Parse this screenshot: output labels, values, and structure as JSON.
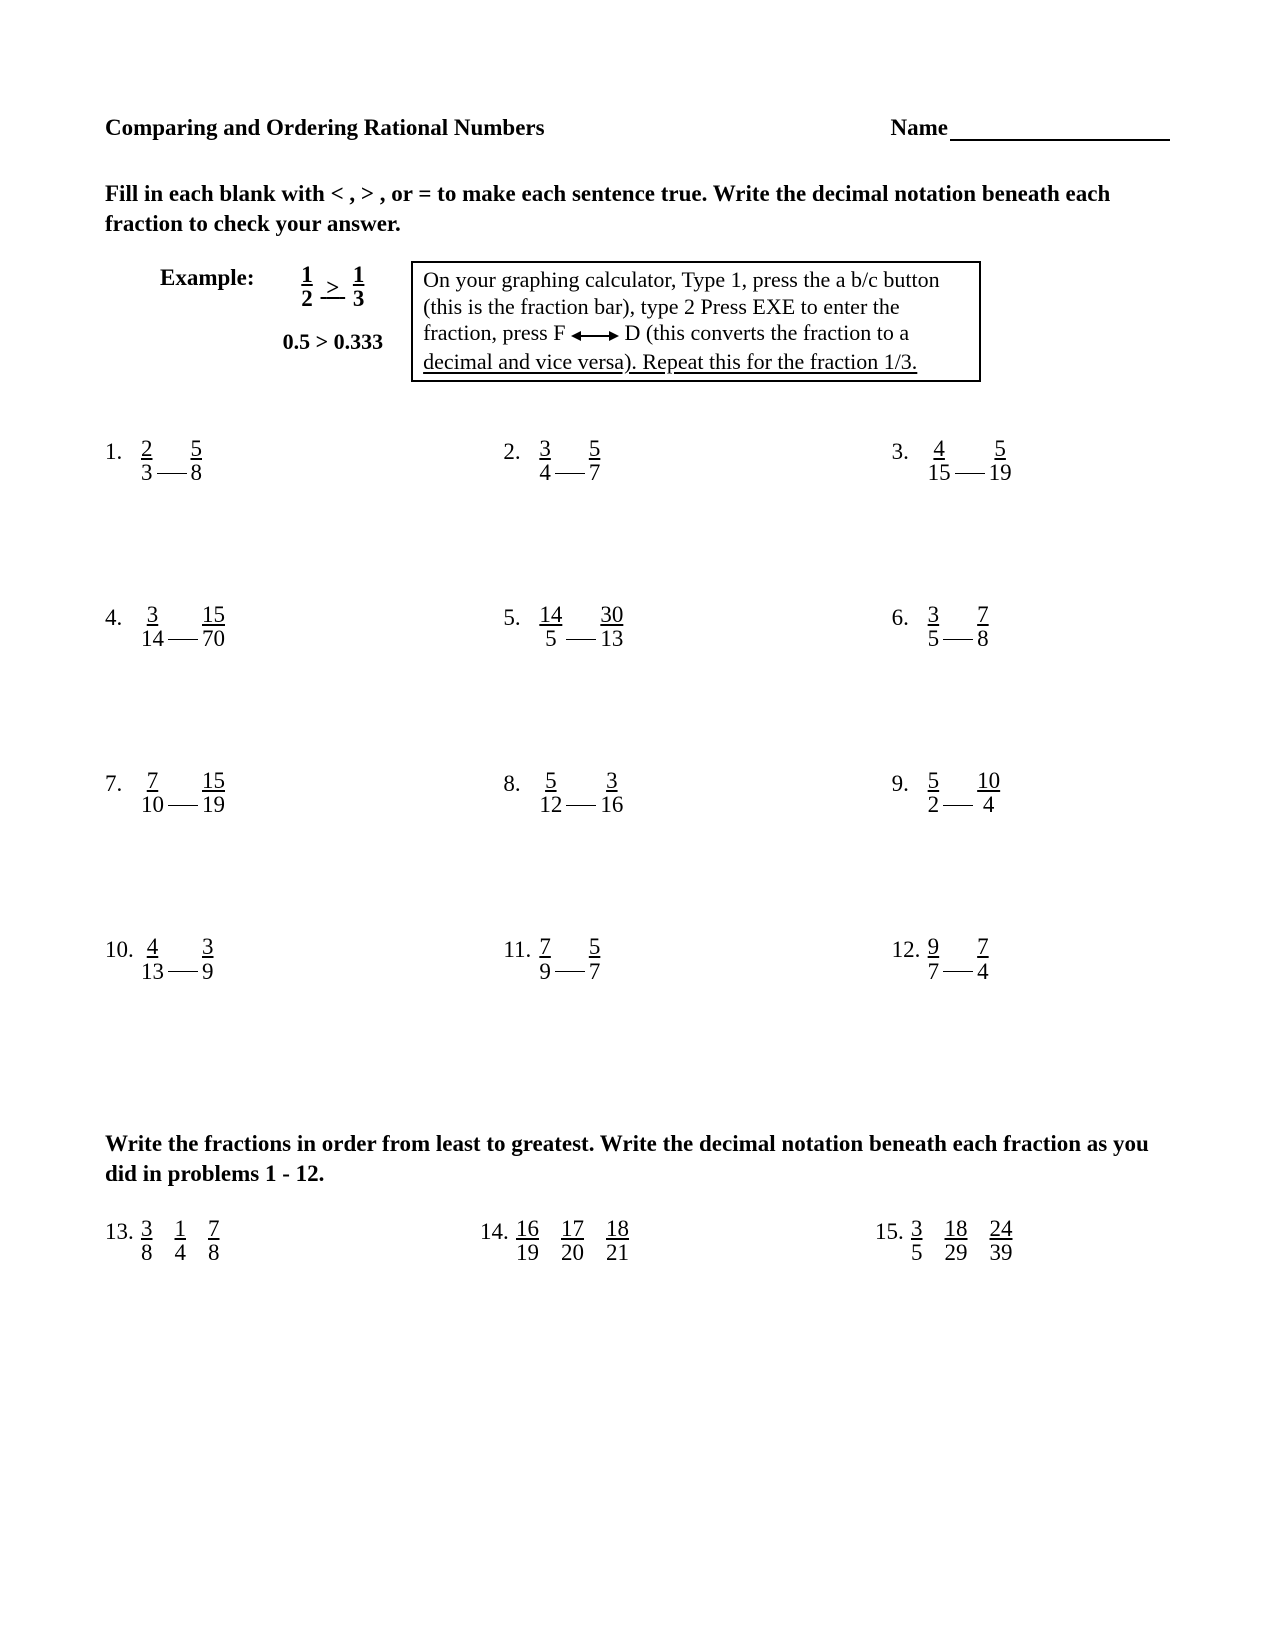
{
  "header": {
    "title": "Comparing and Ordering Rational Numbers",
    "name_label": "Name"
  },
  "instructions": "Fill in each blank with < , > , or = to make each sentence true.  Write the decimal notation beneath each fraction to check your answer.",
  "example": {
    "label": "Example:",
    "frac1": {
      "num": "1",
      "den": "2"
    },
    "symbol": ">",
    "frac2": {
      "num": "1",
      "den": "3"
    },
    "decimal_line": "0.5 > 0.333"
  },
  "calc_box": {
    "line1": "On your graphing calculator, Type 1, press the a b/c button",
    "line2": "(this is the fraction bar), type 2 Press EXE to enter the",
    "line3a": "fraction, press F",
    "line3b": "D (this converts the fraction to a",
    "line4": "decimal and vice versa).  Repeat this for the fraction 1/3."
  },
  "problems": [
    {
      "n": "1.",
      "a": {
        "num": "2",
        "den": "3"
      },
      "b": {
        "num": "5",
        "den": "8"
      }
    },
    {
      "n": "2.",
      "a": {
        "num": "3",
        "den": "4"
      },
      "b": {
        "num": "5",
        "den": "7"
      }
    },
    {
      "n": "3.",
      "a": {
        "num": "4",
        "den": "15"
      },
      "b": {
        "num": "5",
        "den": "19"
      }
    },
    {
      "n": "4.",
      "a": {
        "num": "3",
        "den": "14"
      },
      "b": {
        "num": "15",
        "den": "70"
      }
    },
    {
      "n": "5.",
      "a": {
        "num": "14",
        "den": "5"
      },
      "b": {
        "num": "30",
        "den": "13"
      }
    },
    {
      "n": "6.",
      "a": {
        "num": "3",
        "den": "5"
      },
      "b": {
        "num": "7",
        "den": "8"
      }
    },
    {
      "n": "7.",
      "a": {
        "num": "7",
        "den": "10"
      },
      "b": {
        "num": "15",
        "den": "19"
      }
    },
    {
      "n": "8.",
      "a": {
        "num": "5",
        "den": "12"
      },
      "b": {
        "num": "3",
        "den": "16"
      }
    },
    {
      "n": "9.",
      "a": {
        "num": "5",
        "den": "2"
      },
      "b": {
        "num": "10",
        "den": "4"
      }
    },
    {
      "n": "10.",
      "a": {
        "num": "4",
        "den": "13"
      },
      "b": {
        "num": "3",
        "den": "9"
      }
    },
    {
      "n": "11.",
      "a": {
        "num": "7",
        "den": "9"
      },
      "b": {
        "num": "5",
        "den": "7"
      }
    },
    {
      "n": "12.",
      "a": {
        "num": "9",
        "den": "7"
      },
      "b": {
        "num": "7",
        "den": "4"
      }
    }
  ],
  "section2": "Write the fractions in order from least to greatest.  Write the decimal notation beneath each fraction as you did in problems 1 - 12.",
  "order_problems": [
    {
      "n": "13.",
      "f": [
        {
          "num": "3",
          "den": "8"
        },
        {
          "num": "1",
          "den": "4"
        },
        {
          "num": "7",
          "den": "8"
        }
      ]
    },
    {
      "n": "14.",
      "f": [
        {
          "num": "16",
          "den": "19"
        },
        {
          "num": "17",
          "den": "20"
        },
        {
          "num": "18",
          "den": "21"
        }
      ]
    },
    {
      "n": "15.",
      "f": [
        {
          "num": "3",
          "den": "5"
        },
        {
          "num": "18",
          "den": "29"
        },
        {
          "num": "24",
          "den": "39"
        }
      ]
    }
  ]
}
